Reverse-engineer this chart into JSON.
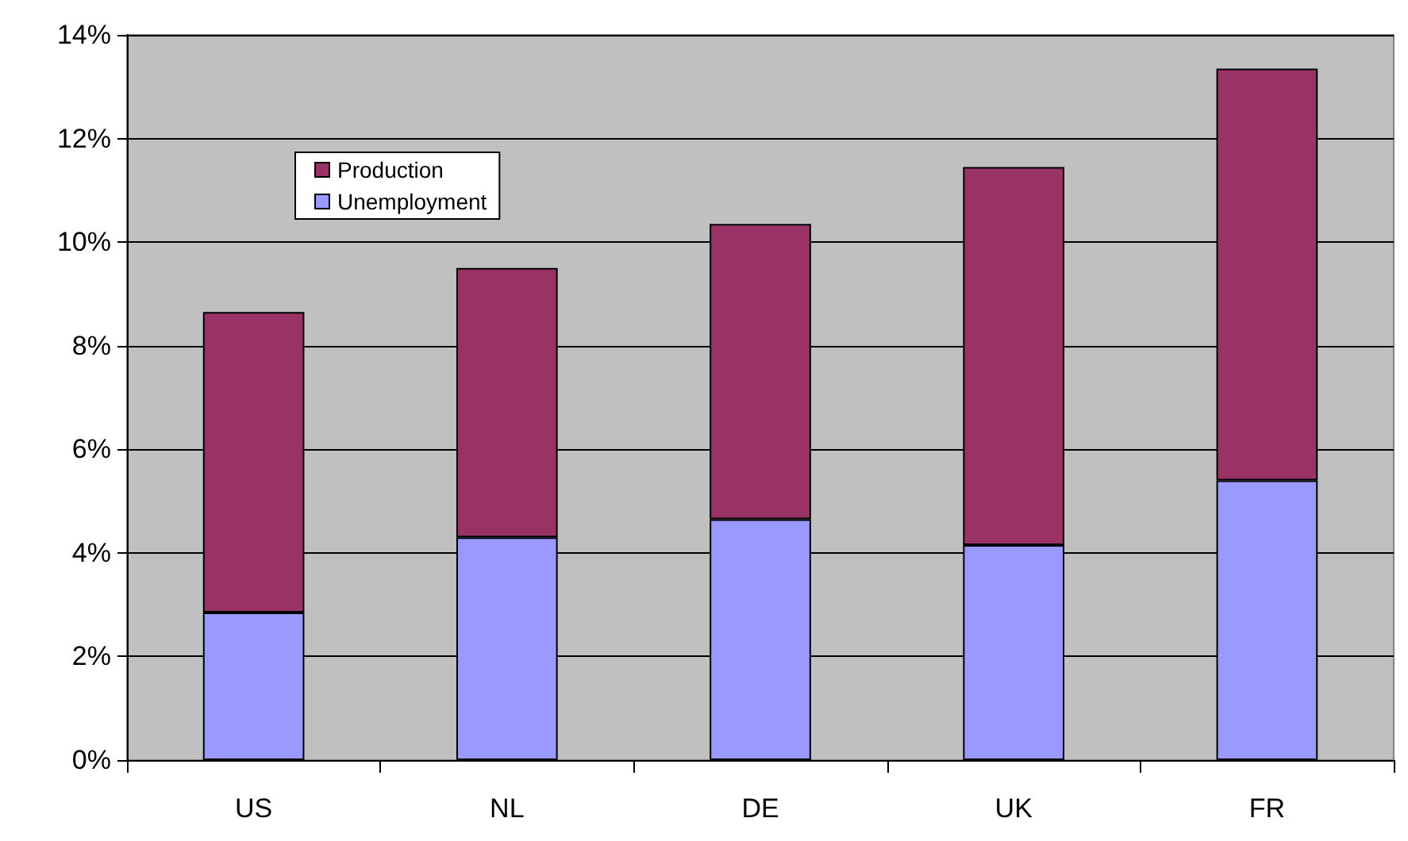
{
  "chart_data": {
    "type": "bar",
    "stacked": true,
    "categories": [
      "US",
      "NL",
      "DE",
      "UK",
      "FR"
    ],
    "series": [
      {
        "name": "Unemployment",
        "color": "#9999ff",
        "values": [
          2.85,
          4.3,
          4.65,
          4.15,
          5.4
        ]
      },
      {
        "name": "Production",
        "color": "#993366",
        "values": [
          5.8,
          5.2,
          5.7,
          7.3,
          7.95
        ]
      }
    ],
    "ylim": [
      0,
      14
    ],
    "yticks": [
      {
        "value": 0,
        "label": "0%"
      },
      {
        "value": 2,
        "label": "2%"
      },
      {
        "value": 4,
        "label": "4%"
      },
      {
        "value": 6,
        "label": "6%"
      },
      {
        "value": 8,
        "label": "8%"
      },
      {
        "value": 10,
        "label": "10%"
      },
      {
        "value": 12,
        "label": "12%"
      },
      {
        "value": 14,
        "label": "14%"
      }
    ],
    "grid": "y",
    "legend": "top left"
  }
}
